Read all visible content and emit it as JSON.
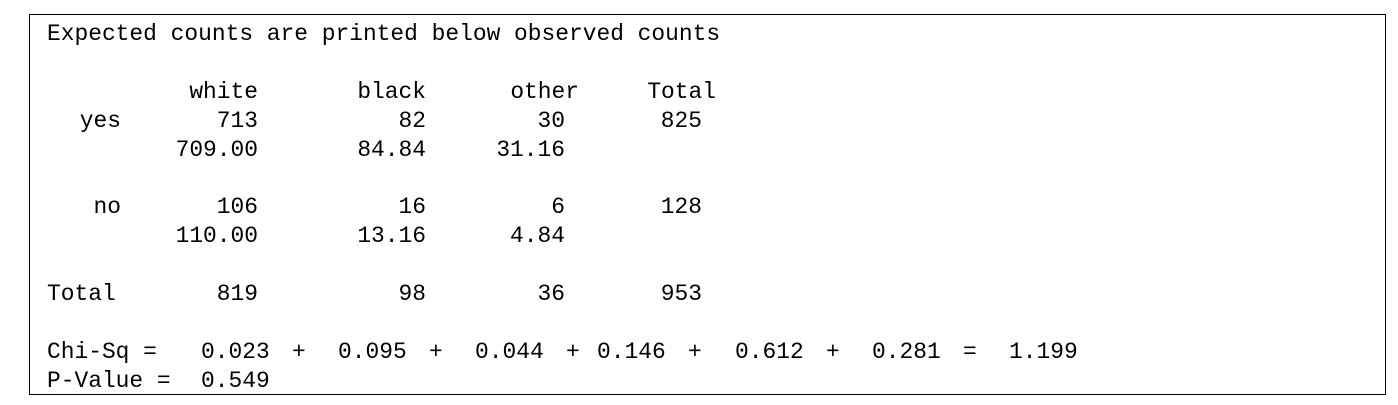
{
  "title": "Expected counts are printed below observed counts",
  "table": {
    "columns": [
      "white",
      "black",
      "other",
      "Total"
    ],
    "rows": [
      {
        "label": "yes",
        "observed": [
          "713",
          "82",
          "30",
          "825"
        ],
        "expected": [
          "709.00",
          "84.84",
          "31.16"
        ]
      },
      {
        "label": "no",
        "observed": [
          "106",
          "16",
          "6",
          "128"
        ],
        "expected": [
          "110.00",
          "13.16",
          "4.84"
        ]
      }
    ],
    "total": {
      "label": "Total",
      "values": [
        "819",
        "98",
        "36",
        "953"
      ]
    }
  },
  "chi_sq": {
    "label": "Chi-Sq =",
    "terms": [
      "0.023",
      "0.095",
      "0.044",
      "0.146",
      "0.612",
      "0.281"
    ],
    "plus": "+",
    "equals": "=",
    "result": "1.199"
  },
  "p_value": {
    "label": "P-Value =",
    "value": "0.549"
  }
}
